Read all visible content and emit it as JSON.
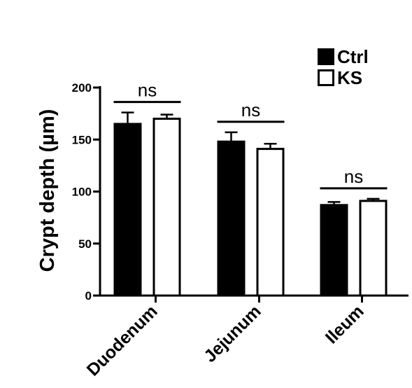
{
  "chart_data": {
    "type": "bar",
    "categories": [
      "Duodenum",
      "Jejunum",
      "Ileum"
    ],
    "series": [
      {
        "name": "Ctrl",
        "values": [
          165,
          148,
          87
        ],
        "errors": [
          11,
          9,
          3
        ],
        "color": "#000000"
      },
      {
        "name": "KS",
        "values": [
          170,
          141,
          91
        ],
        "errors": [
          4,
          5,
          2
        ],
        "color": "#ffffff"
      }
    ],
    "title": "",
    "xlabel": "",
    "ylabel": "Crypt depth (µm)",
    "ylim": [
      0,
      200
    ],
    "yticks": [
      0,
      50,
      100,
      150,
      200
    ],
    "annotations": [
      "ns",
      "ns",
      "ns"
    ],
    "legend_position": "top-right",
    "grid": false
  }
}
